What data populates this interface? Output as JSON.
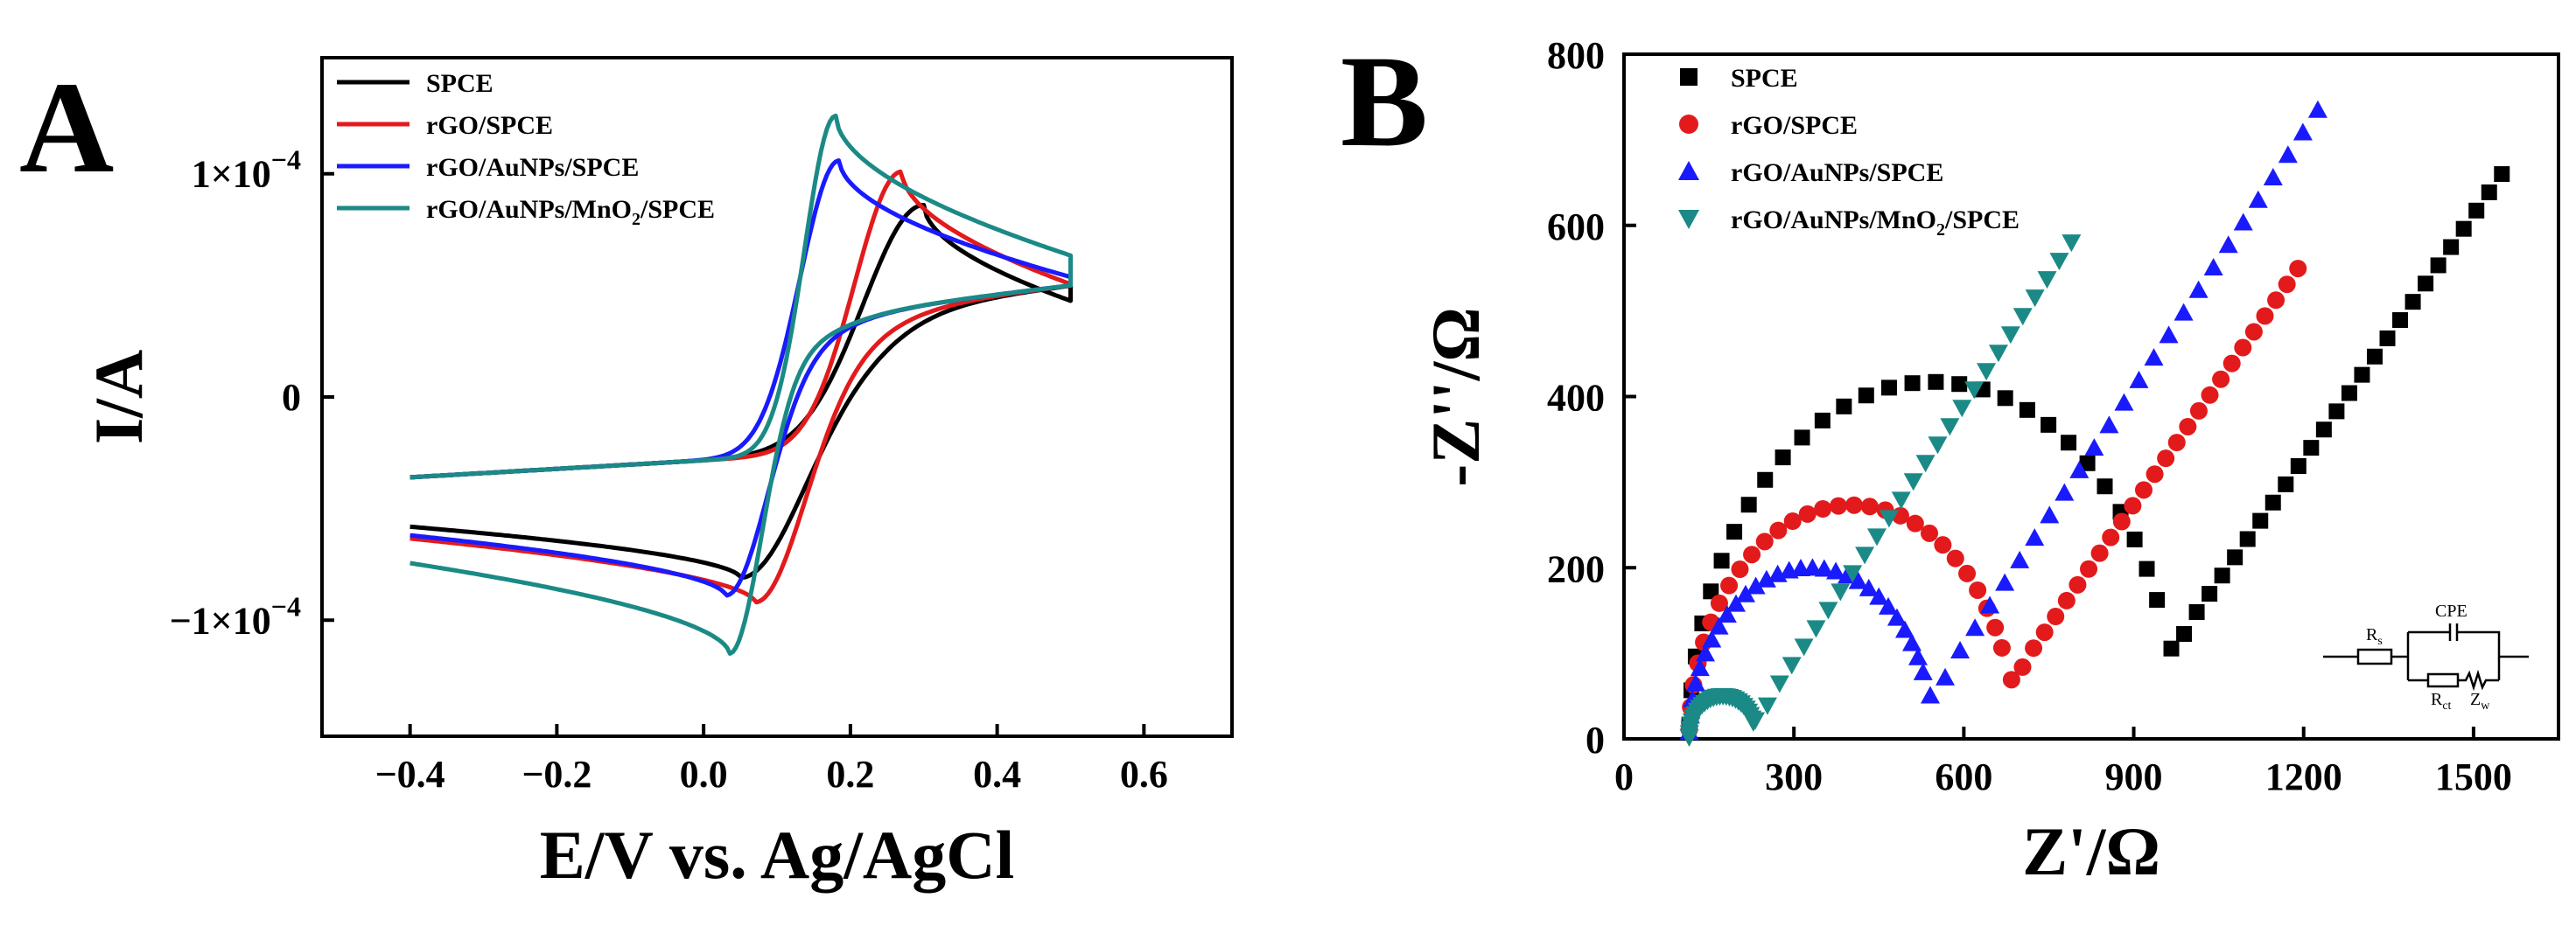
{
  "figure": {
    "panels": [
      {
        "letter": "A"
      },
      {
        "letter": "B"
      }
    ]
  },
  "colors": {
    "SPCE": "#000000",
    "rGO/SPCE": "#e31a1c",
    "rGO/AuNPs/SPCE": "#1a1aff",
    "rGO/AuNPs/MnO2/SPCE": "#1b8a86"
  },
  "circuit": {
    "labels": {
      "rs": "R",
      "rs_sub": "s",
      "cpe": "CPE",
      "rct": "R",
      "rct_sub": "ct",
      "zw": "Z",
      "zw_sub": "w"
    }
  },
  "chart_data": [
    {
      "type": "line",
      "panel": "A",
      "title": "",
      "xlabel": "E/V vs. Ag/AgCl",
      "ylabel": "I/A",
      "xlim": [
        -0.52,
        0.72
      ],
      "ylim": [
        -0.000152,
        0.000152
      ],
      "xticks": [
        -0.4,
        -0.2,
        0.0,
        0.2,
        0.4,
        0.6
      ],
      "xtick_labels": [
        "−0.4",
        "−0.2",
        "0.0",
        "0.2",
        "0.4",
        "0.6"
      ],
      "yticks": [
        0.0001,
        0,
        -0.0001
      ],
      "ytick_labels": [
        {
          "base": "1×10",
          "exp": "−4"
        },
        {
          "base": "0",
          "exp": ""
        },
        {
          "base": "−1×10",
          "exp": "−4"
        }
      ],
      "legend_position": "top-left",
      "series": [
        {
          "name": "SPCE",
          "label_parts": [
            "SPCE"
          ],
          "E_ox": 0.3,
          "Ip_ox": 8.6e-05,
          "E_red": 0.05,
          "Ip_red": -8.1e-05,
          "width": 0.115
        },
        {
          "name": "rGO/SPCE",
          "label_parts": [
            "rGO/SPCE"
          ],
          "E_ox": 0.27,
          "Ip_ox": 0.000101,
          "E_red": 0.07,
          "Ip_red": -9.2e-05,
          "width": 0.09
        },
        {
          "name": "rGO/AuNPs/SPCE",
          "label_parts": [
            "rGO/AuNPs/SPCE"
          ],
          "E_ox": 0.185,
          "Ip_ox": 0.000106,
          "E_red": 0.03,
          "Ip_red": -8.9e-05,
          "width": 0.075
        },
        {
          "name": "rGO/AuNPs/MnO2/SPCE",
          "label_parts": [
            "rGO/AuNPs/MnO",
            "2",
            "/SPCE"
          ],
          "E_ox": 0.18,
          "Ip_ox": 0.000126,
          "E_red": 0.035,
          "Ip_red": -0.000115,
          "width": 0.06
        }
      ]
    },
    {
      "type": "scatter",
      "panel": "B",
      "title": "",
      "xlabel": "Z'/Ω",
      "ylabel": "-Z''/Ω",
      "xlim": [
        0,
        1650
      ],
      "ylim": [
        0,
        800
      ],
      "xticks": [
        0,
        300,
        600,
        900,
        1200,
        1500
      ],
      "xtick_labels": [
        "0",
        "300",
        "600",
        "900",
        "1200",
        "1500"
      ],
      "yticks": [
        0,
        200,
        400,
        600,
        800
      ],
      "ytick_labels": [
        "0",
        "200",
        "400",
        "600",
        "800"
      ],
      "legend_position": "top-left",
      "series": [
        {
          "name": "SPCE",
          "label_parts": [
            "SPCE"
          ],
          "marker": "square",
          "Rs": 115,
          "Rct": 860,
          "depress": 0.97,
          "tail_slope": 0.95,
          "tail_end": 1550
        },
        {
          "name": "rGO/SPCE",
          "label_parts": [
            "rGO/SPCE"
          ],
          "marker": "circle",
          "Rs": 115,
          "Rct": 575,
          "depress": 0.95,
          "tail_slope": 0.95,
          "tail_end": 1190
        },
        {
          "name": "rGO/AuNPs/SPCE",
          "label_parts": [
            "rGO/AuNPs/SPCE"
          ],
          "marker": "triangle-up",
          "Rs": 115,
          "Rct": 430,
          "depress": 0.93,
          "tail_slope": 1.0,
          "tail_end": 1225
        },
        {
          "name": "rGO/AuNPs/MnO2/SPCE",
          "label_parts": [
            "rGO/AuNPs/MnO",
            "2",
            "/SPCE"
          ],
          "marker": "triangle-down",
          "Rs": 115,
          "Rct": 118,
          "depress": 0.85,
          "tail_slope": 1.0,
          "tail_end": 790
        }
      ]
    }
  ]
}
